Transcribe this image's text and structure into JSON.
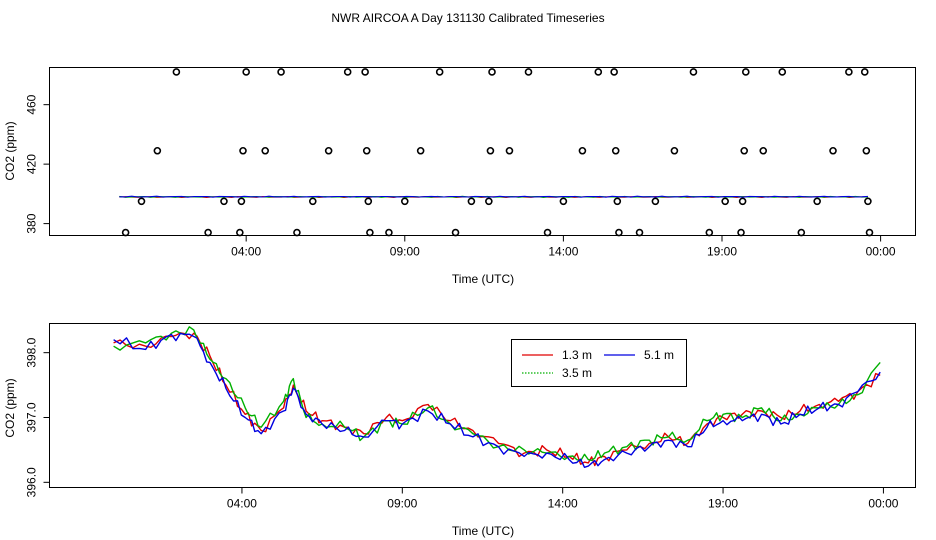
{
  "title": "NWR AIRCOA A  Day 131130  Calibrated Timeseries",
  "chart_data": [
    {
      "type": "scatter",
      "xlabel": "Time (UTC)",
      "ylabel": "CO2 (ppm)",
      "xlim": [
        -2.2,
        25.1
      ],
      "ylim": [
        372,
        485
      ],
      "xticks": [
        {
          "v": 4,
          "label": "04:00"
        },
        {
          "v": 9,
          "label": "09:00"
        },
        {
          "v": 14,
          "label": "14:00"
        },
        {
          "v": 19,
          "label": "19:00"
        },
        {
          "v": 24,
          "label": "00:00"
        }
      ],
      "yticks": [
        {
          "v": 380,
          "label": "380"
        },
        {
          "v": 420,
          "label": "420"
        },
        {
          "v": 460,
          "label": "460"
        }
      ],
      "points": [
        {
          "x": 0.2,
          "y": 374
        },
        {
          "x": 0.7,
          "y": 395
        },
        {
          "x": 1.2,
          "y": 429
        },
        {
          "x": 1.8,
          "y": 482
        },
        {
          "x": 2.8,
          "y": 374
        },
        {
          "x": 3.3,
          "y": 395
        },
        {
          "x": 3.8,
          "y": 374
        },
        {
          "x": 3.85,
          "y": 395
        },
        {
          "x": 3.9,
          "y": 429
        },
        {
          "x": 4.0,
          "y": 482
        },
        {
          "x": 4.6,
          "y": 429
        },
        {
          "x": 5.1,
          "y": 482
        },
        {
          "x": 5.6,
          "y": 374
        },
        {
          "x": 6.1,
          "y": 395
        },
        {
          "x": 6.6,
          "y": 429
        },
        {
          "x": 7.2,
          "y": 482
        },
        {
          "x": 7.75,
          "y": 482
        },
        {
          "x": 7.8,
          "y": 429
        },
        {
          "x": 7.85,
          "y": 395
        },
        {
          "x": 7.9,
          "y": 374
        },
        {
          "x": 8.5,
          "y": 374
        },
        {
          "x": 9.0,
          "y": 395
        },
        {
          "x": 9.5,
          "y": 429
        },
        {
          "x": 10.1,
          "y": 482
        },
        {
          "x": 10.6,
          "y": 374
        },
        {
          "x": 11.1,
          "y": 395
        },
        {
          "x": 11.65,
          "y": 395
        },
        {
          "x": 11.7,
          "y": 429
        },
        {
          "x": 11.75,
          "y": 482
        },
        {
          "x": 12.3,
          "y": 429
        },
        {
          "x": 12.9,
          "y": 482
        },
        {
          "x": 13.5,
          "y": 374
        },
        {
          "x": 14.0,
          "y": 395
        },
        {
          "x": 14.6,
          "y": 429
        },
        {
          "x": 15.1,
          "y": 482
        },
        {
          "x": 15.6,
          "y": 482
        },
        {
          "x": 15.65,
          "y": 429
        },
        {
          "x": 15.7,
          "y": 395
        },
        {
          "x": 15.75,
          "y": 374
        },
        {
          "x": 16.4,
          "y": 374
        },
        {
          "x": 16.9,
          "y": 395
        },
        {
          "x": 17.5,
          "y": 429
        },
        {
          "x": 18.1,
          "y": 482
        },
        {
          "x": 18.6,
          "y": 374
        },
        {
          "x": 19.1,
          "y": 395
        },
        {
          "x": 19.6,
          "y": 374
        },
        {
          "x": 19.65,
          "y": 395
        },
        {
          "x": 19.7,
          "y": 429
        },
        {
          "x": 19.75,
          "y": 482
        },
        {
          "x": 20.3,
          "y": 429
        },
        {
          "x": 20.9,
          "y": 482
        },
        {
          "x": 21.5,
          "y": 374
        },
        {
          "x": 22.0,
          "y": 395
        },
        {
          "x": 22.5,
          "y": 429
        },
        {
          "x": 23.0,
          "y": 482
        },
        {
          "x": 23.5,
          "y": 482
        },
        {
          "x": 23.55,
          "y": 429
        },
        {
          "x": 23.6,
          "y": 395
        },
        {
          "x": 23.65,
          "y": 374
        }
      ],
      "series_colors": [
        "#e00000",
        "#00b000",
        "#0000e0"
      ],
      "series_names": [
        "1.3 m",
        "3.5 m",
        "5.1 m"
      ],
      "series_levels": [
        397.9,
        398.0,
        398.1
      ]
    },
    {
      "type": "line",
      "xlabel": "Time (UTC)",
      "ylabel": "CO2 (ppm)",
      "xlim": [
        -2.0,
        25.0
      ],
      "ylim": [
        395.92,
        398.45
      ],
      "xticks": [
        {
          "v": 4,
          "label": "04:00"
        },
        {
          "v": 9,
          "label": "09:00"
        },
        {
          "v": 14,
          "label": "14:00"
        },
        {
          "v": 19,
          "label": "19:00"
        },
        {
          "v": 24,
          "label": "00:00"
        }
      ],
      "yticks": [
        {
          "v": 396.0,
          "label": "396.0"
        },
        {
          "v": 397.0,
          "label": "397.0"
        },
        {
          "v": 398.0,
          "label": "398.0"
        }
      ],
      "x": [
        0.0,
        1.0,
        1.8,
        2.5,
        3.0,
        3.5,
        4.1,
        4.6,
        5.3,
        5.6,
        6.0,
        6.5,
        7.2,
        7.8,
        8.5,
        9.0,
        9.8,
        10.5,
        11.2,
        12.0,
        12.8,
        13.5,
        14.2,
        14.8,
        15.3,
        16.0,
        16.7,
        17.3,
        17.9,
        18.5,
        19.0,
        19.6,
        20.2,
        20.8,
        21.4,
        22.0,
        22.6,
        23.2,
        23.9
      ],
      "series": [
        {
          "name": "1.3 m",
          "color": "#e00000",
          "values": [
            398.15,
            398.1,
            398.25,
            398.3,
            397.95,
            397.5,
            397.05,
            396.8,
            397.15,
            397.5,
            397.1,
            396.95,
            396.85,
            396.75,
            397.0,
            396.95,
            397.2,
            396.95,
            396.8,
            396.6,
            396.45,
            396.5,
            396.4,
            396.3,
            396.4,
            396.5,
            396.6,
            396.7,
            396.6,
            396.9,
            397.0,
            397.05,
            397.1,
            397.0,
            397.1,
            397.2,
            397.25,
            397.4,
            397.65
          ]
        },
        {
          "name": "3.5 m",
          "color": "#00b000",
          "values": [
            398.1,
            398.15,
            398.3,
            398.35,
            397.9,
            397.6,
            397.15,
            396.85,
            397.25,
            397.6,
            397.0,
            396.9,
            396.85,
            396.7,
            396.95,
            396.9,
            397.15,
            396.9,
            396.75,
            396.55,
            396.5,
            396.45,
            396.4,
            396.35,
            396.45,
            396.55,
            396.65,
            396.7,
            396.65,
            396.95,
            397.05,
            397.0,
            397.15,
            396.95,
            397.05,
            397.15,
            397.2,
            397.35,
            397.85
          ]
        },
        {
          "name": "5.1 m",
          "color": "#0000e0",
          "values": [
            398.2,
            398.05,
            398.28,
            398.25,
            397.85,
            397.45,
            397.0,
            396.75,
            397.1,
            397.45,
            397.05,
            396.9,
            396.8,
            396.7,
            396.95,
            396.9,
            397.1,
            396.9,
            396.7,
            396.55,
            396.4,
            396.45,
            396.35,
            396.25,
            396.35,
            396.45,
            396.55,
            396.65,
            396.55,
            396.85,
            396.95,
            396.95,
            397.05,
            396.9,
            397.05,
            397.15,
            397.2,
            397.4,
            397.7
          ]
        }
      ]
    }
  ]
}
